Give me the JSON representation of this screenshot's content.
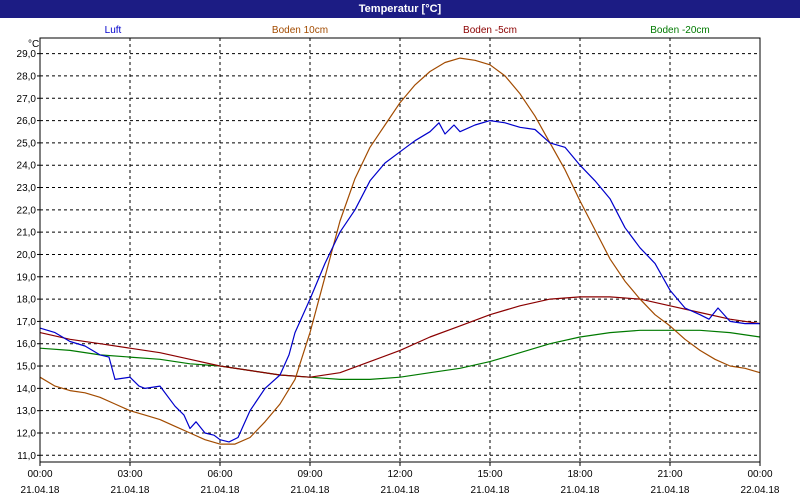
{
  "chart_data": {
    "type": "line",
    "title": "Temperatur [°C]",
    "ylabel": "°C",
    "ylim": [
      10.7,
      29.7
    ],
    "yticks": [
      "11,0",
      "12,0",
      "13,0",
      "14,0",
      "15,0",
      "16,0",
      "17,0",
      "18,0",
      "19,0",
      "20,0",
      "21,0",
      "22,0",
      "23,0",
      "24,0",
      "25,0",
      "26,0",
      "27,0",
      "28,0",
      "29,0"
    ],
    "xlim": [
      0,
      24
    ],
    "xticks": [
      {
        "time": "00:00",
        "date": "21.04.18"
      },
      {
        "time": "03:00",
        "date": "21.04.18"
      },
      {
        "time": "06:00",
        "date": "21.04.18"
      },
      {
        "time": "09:00",
        "date": "21.04.18"
      },
      {
        "time": "12:00",
        "date": "21.04.18"
      },
      {
        "time": "15:00",
        "date": "21.04.18"
      },
      {
        "time": "18:00",
        "date": "21.04.18"
      },
      {
        "time": "21:00",
        "date": "21.04.18"
      },
      {
        "time": "00:00",
        "date": "22.04.18"
      }
    ],
    "grid": true,
    "legend_position": "top",
    "series": [
      {
        "name": "Luft",
        "color": "#0000cc",
        "x": [
          0,
          0.5,
          1,
          1.5,
          2,
          2.3,
          2.5,
          3,
          3.3,
          3.5,
          4,
          4.5,
          4.8,
          5,
          5.2,
          5.5,
          5.8,
          6,
          6.3,
          6.6,
          7,
          7.5,
          8,
          8.3,
          8.5,
          9,
          9.5,
          10,
          10.5,
          11,
          11.5,
          12,
          12.5,
          13,
          13.3,
          13.5,
          13.8,
          14,
          14.5,
          15,
          15.5,
          16,
          16.5,
          17,
          17.5,
          18,
          18.5,
          19,
          19.5,
          20,
          20.5,
          21,
          21.5,
          22,
          22.3,
          22.6,
          23,
          23.5,
          24
        ],
        "y": [
          16.7,
          16.5,
          16.1,
          15.9,
          15.5,
          15.4,
          14.4,
          14.5,
          14.1,
          14.0,
          14.1,
          13.2,
          12.8,
          12.2,
          12.5,
          12.0,
          11.9,
          11.7,
          11.6,
          11.8,
          13.0,
          14.0,
          14.6,
          15.5,
          16.5,
          18.0,
          19.6,
          21.0,
          22.0,
          23.3,
          24.1,
          24.6,
          25.1,
          25.5,
          25.9,
          25.4,
          25.8,
          25.5,
          25.8,
          26.0,
          25.9,
          25.7,
          25.6,
          25.0,
          24.8,
          24.0,
          23.3,
          22.5,
          21.2,
          20.3,
          19.6,
          18.4,
          17.6,
          17.3,
          17.1,
          17.6,
          17.0,
          16.9,
          16.9
        ]
      },
      {
        "name": "Boden 10cm",
        "color": "#a24b00",
        "x": [
          0,
          0.5,
          1,
          1.5,
          2,
          2.5,
          3,
          3.5,
          4,
          4.5,
          5,
          5.5,
          6,
          6.5,
          7,
          7.5,
          8,
          8.5,
          9,
          9.5,
          10,
          10.5,
          11,
          11.5,
          12,
          12.5,
          13,
          13.5,
          14,
          14.5,
          15,
          15.5,
          16,
          16.5,
          17,
          17.5,
          18,
          18.5,
          19,
          19.5,
          20,
          20.5,
          21,
          21.5,
          22,
          22.5,
          23,
          23.5,
          24
        ],
        "y": [
          14.5,
          14.1,
          13.9,
          13.8,
          13.6,
          13.3,
          13.0,
          12.8,
          12.6,
          12.3,
          12.0,
          11.7,
          11.5,
          11.5,
          11.8,
          12.5,
          13.3,
          14.4,
          16.5,
          19.0,
          21.5,
          23.4,
          24.8,
          25.8,
          26.8,
          27.6,
          28.2,
          28.6,
          28.8,
          28.7,
          28.5,
          28.0,
          27.2,
          26.2,
          25.0,
          23.8,
          22.4,
          21.1,
          19.8,
          18.8,
          18.0,
          17.3,
          16.8,
          16.2,
          15.7,
          15.3,
          15.0,
          14.9,
          14.7
        ]
      },
      {
        "name": "Boden -5cm",
        "color": "#8b0000",
        "x": [
          0,
          1,
          2,
          3,
          4,
          5,
          6,
          7,
          8,
          9,
          10,
          11,
          12,
          13,
          14,
          15,
          16,
          17,
          18,
          19,
          20,
          21,
          22,
          23,
          24
        ],
        "y": [
          16.5,
          16.2,
          16.0,
          15.8,
          15.6,
          15.3,
          15.0,
          14.8,
          14.6,
          14.5,
          14.7,
          15.2,
          15.7,
          16.3,
          16.8,
          17.3,
          17.7,
          18.0,
          18.1,
          18.1,
          18.0,
          17.7,
          17.4,
          17.1,
          16.9
        ]
      },
      {
        "name": "Boden -20cm",
        "color": "#007a00",
        "x": [
          0,
          1,
          2,
          3,
          4,
          5,
          6,
          7,
          8,
          9,
          10,
          11,
          12,
          13,
          14,
          15,
          16,
          17,
          18,
          19,
          20,
          21,
          22,
          23,
          24
        ],
        "y": [
          15.8,
          15.7,
          15.5,
          15.4,
          15.3,
          15.1,
          15.0,
          14.8,
          14.6,
          14.5,
          14.4,
          14.4,
          14.5,
          14.7,
          14.9,
          15.2,
          15.6,
          16.0,
          16.3,
          16.5,
          16.6,
          16.6,
          16.6,
          16.5,
          16.3
        ]
      }
    ]
  }
}
